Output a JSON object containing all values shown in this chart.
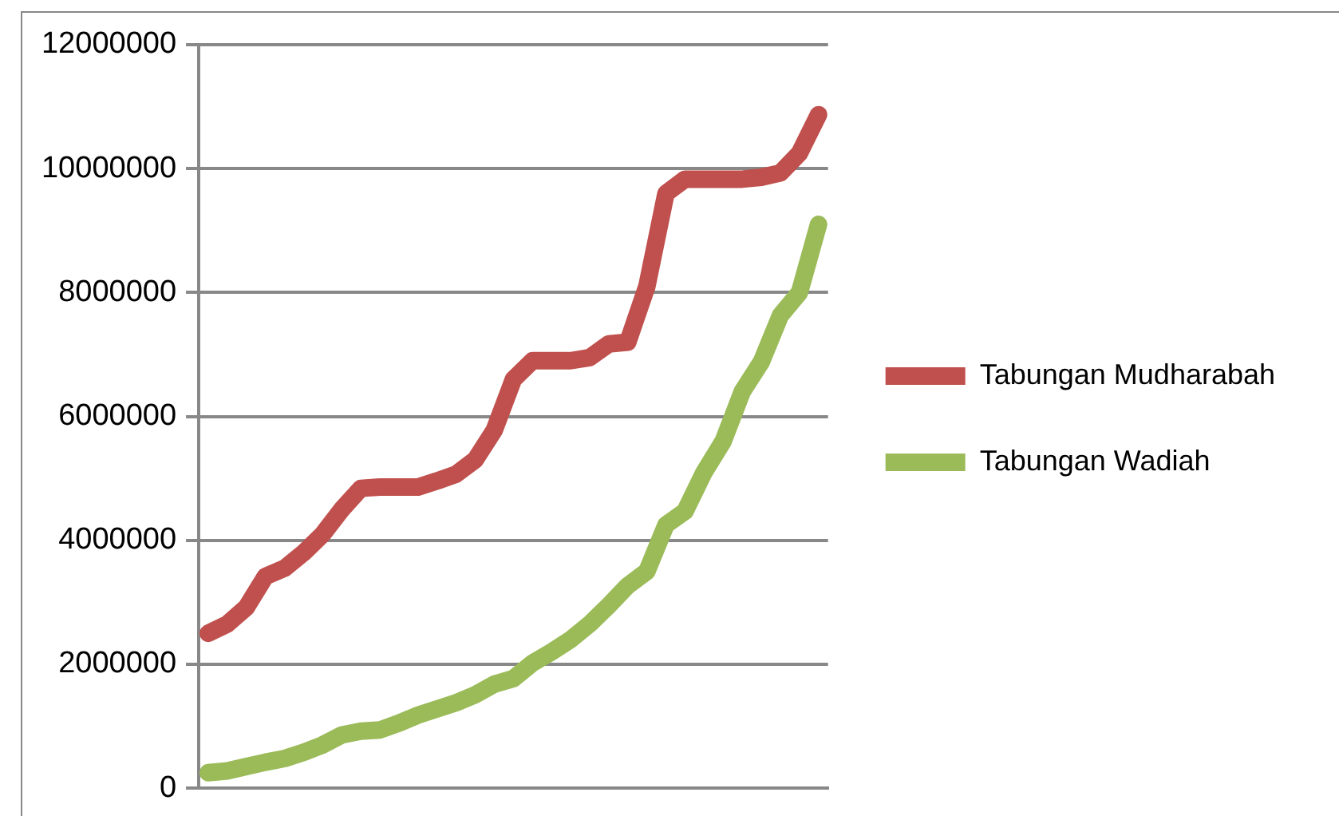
{
  "chart_data": {
    "type": "line",
    "categories": [
      null,
      null,
      null,
      null,
      null,
      null,
      null,
      null,
      null,
      null,
      null,
      null,
      null,
      null,
      null,
      null,
      null,
      null,
      null,
      null,
      null,
      null,
      null,
      null,
      null,
      null,
      null,
      null,
      null,
      null,
      null,
      null,
      null
    ],
    "series": [
      {
        "name": "Tabungan Mudharabah",
        "color": "#c0504d",
        "values": [
          2500000,
          2650000,
          2920000,
          3420000,
          3550000,
          3800000,
          4100000,
          4500000,
          4840000,
          4860000,
          4860000,
          4860000,
          4960000,
          5070000,
          5300000,
          5780000,
          6600000,
          6900000,
          6900000,
          6900000,
          6950000,
          7170000,
          7200000,
          8100000,
          9600000,
          9830000,
          9830000,
          9830000,
          9830000,
          9860000,
          9930000,
          10250000,
          10870000
        ]
      },
      {
        "name": "Tabungan Wadiah",
        "color": "#9bbb59",
        "values": [
          250000,
          280000,
          350000,
          420000,
          480000,
          580000,
          700000,
          860000,
          920000,
          940000,
          1050000,
          1180000,
          1280000,
          1380000,
          1510000,
          1680000,
          1770000,
          2020000,
          2200000,
          2400000,
          2650000,
          2950000,
          3270000,
          3500000,
          4250000,
          4470000,
          5100000,
          5600000,
          6400000,
          6880000,
          7630000,
          8000000,
          9100000
        ]
      }
    ],
    "ylim": [
      0,
      12000000
    ],
    "yticks": [
      0,
      2000000,
      4000000,
      6000000,
      8000000,
      10000000,
      12000000
    ],
    "grid": "y",
    "legend": "right",
    "tick_labels": "y",
    "marker": "none",
    "line_style": "solid"
  }
}
